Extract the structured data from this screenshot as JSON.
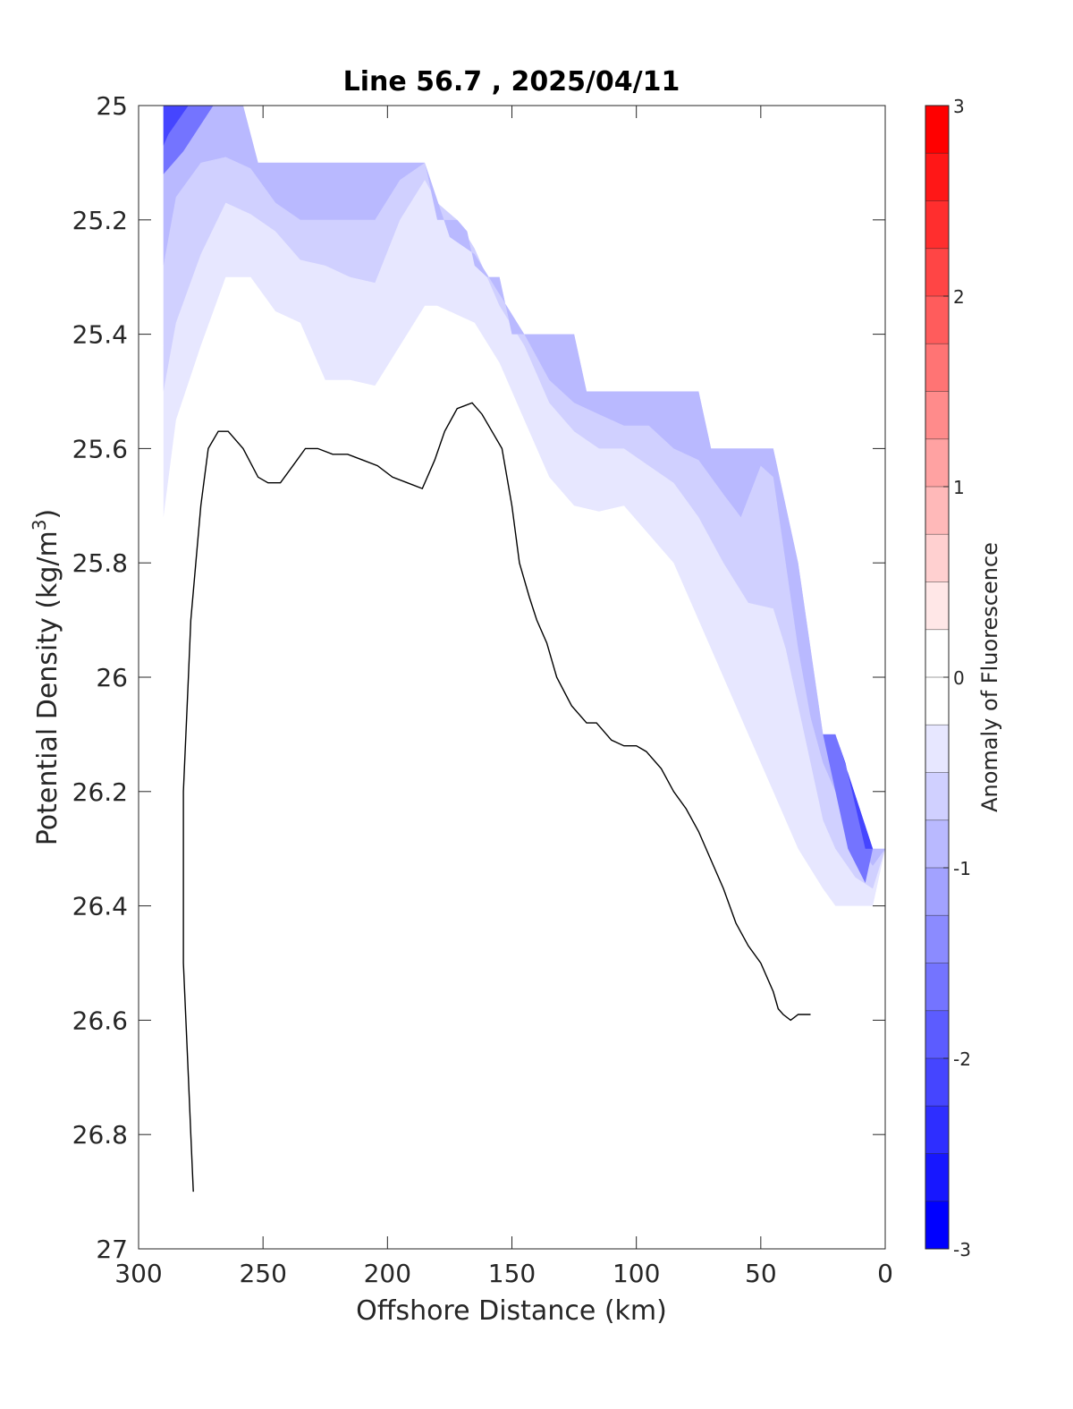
{
  "chart_data": {
    "type": "contour",
    "title": "Line 56.7 , 2025/04/11",
    "xlabel": "Offshore Distance (km)",
    "ylabel": "Potential Density (kg/m",
    "ylabel_sup": "3",
    "ylabel_end": ")",
    "xlim": [
      300,
      0
    ],
    "ylim": [
      25,
      27
    ],
    "x_reversed": true,
    "y_reversed": true,
    "xticks": [
      300,
      250,
      200,
      150,
      100,
      50,
      0
    ],
    "yticks": [
      25,
      25.2,
      25.4,
      25.6,
      25.8,
      26,
      26.2,
      26.4,
      26.6,
      26.8,
      27
    ],
    "ytick_labels": [
      "25",
      "25.2",
      "25.4",
      "25.6",
      "25.8",
      "26",
      "26.2",
      "26.4",
      "26.6",
      "26.8",
      "27"
    ],
    "grid": false,
    "colorbar": {
      "label": "Anomaly of Fluorescence",
      "range": [
        -3,
        3
      ],
      "ticks": [
        -3,
        -2,
        -1,
        0,
        1,
        2,
        3
      ],
      "ticklabels": [
        "-3",
        "-2",
        "-1",
        "0",
        "1",
        "2",
        "3"
      ],
      "levels": [
        -3,
        -2.75,
        -2.5,
        -2.25,
        -2,
        -1.75,
        -1.5,
        -1.25,
        -1,
        -0.75,
        -0.5,
        -0.25,
        0,
        0.25,
        0.5,
        0.75,
        1,
        1.25,
        1.5,
        1.75,
        2,
        2.25,
        2.5,
        2.75,
        3
      ],
      "colors": [
        "#0000ff",
        "#1717ff",
        "#2e2eff",
        "#4545ff",
        "#5c5cff",
        "#7474ff",
        "#8b8bff",
        "#a2a2ff",
        "#b9b9ff",
        "#d0d0ff",
        "#e7e7ff",
        "#ffffff",
        "#ffffff",
        "#ffe7e7",
        "#ffd0d0",
        "#ffb9b9",
        "#ffa2a2",
        "#ff8b8b",
        "#ff7474",
        "#ff5c5c",
        "#ff4545",
        "#ff2e2e",
        "#ff1717",
        "#ff0000"
      ]
    },
    "contour_bands": [
      {
        "name": "upper boundary of sampled section",
        "anomaly": 0,
        "x": [
          290,
          285,
          270,
          262,
          258,
          252,
          185,
          180,
          172,
          168,
          165,
          160,
          155,
          150,
          145,
          125,
          120,
          75,
          70,
          45,
          40,
          35,
          30,
          25,
          20,
          15,
          10,
          5,
          0
        ],
        "y": [
          25,
          25,
          25,
          25,
          25,
          25.1,
          25.1,
          25.2,
          25.2,
          25.22,
          25.28,
          25.3,
          25.3,
          25.4,
          25.4,
          25.4,
          25.5,
          25.5,
          25.6,
          25.6,
          25.7,
          25.8,
          25.95,
          26.1,
          26.1,
          26.2,
          26.3,
          26.3,
          26.3
        ]
      },
      {
        "name": "-0.25 contour",
        "anomaly": -0.25,
        "x": [
          290,
          285,
          275,
          265,
          255,
          245,
          235,
          225,
          215,
          205,
          195,
          185,
          180,
          175,
          165,
          155,
          145,
          135,
          125,
          115,
          105,
          95,
          85,
          75,
          65,
          55,
          45,
          35,
          25,
          20,
          10,
          5
        ],
        "y": [
          25.72,
          25.55,
          25.42,
          25.3,
          25.3,
          25.36,
          25.38,
          25.48,
          25.48,
          25.49,
          25.42,
          25.35,
          25.35,
          25.36,
          25.38,
          25.45,
          25.55,
          25.65,
          25.7,
          25.71,
          25.7,
          25.75,
          25.8,
          25.9,
          26.0,
          26.1,
          26.2,
          26.3,
          26.37,
          26.4,
          26.4,
          26.4
        ]
      },
      {
        "name": "-0.5 contour",
        "anomaly": -0.5,
        "x": [
          290,
          285,
          275,
          265,
          255,
          245,
          235,
          225,
          215,
          205,
          195,
          185,
          180,
          172,
          165,
          155,
          145,
          135,
          125,
          115,
          105,
          95,
          85,
          75,
          65,
          55,
          45,
          40,
          35,
          30,
          25,
          20,
          12,
          5
        ],
        "y": [
          25.5,
          25.38,
          25.26,
          25.17,
          25.19,
          25.22,
          25.27,
          25.28,
          25.3,
          25.31,
          25.2,
          25.13,
          25.17,
          25.2,
          25.25,
          25.35,
          25.42,
          25.52,
          25.57,
          25.6,
          25.6,
          25.63,
          25.66,
          25.72,
          25.8,
          25.87,
          25.88,
          25.95,
          26.05,
          26.15,
          26.25,
          26.3,
          26.35,
          26.37
        ]
      },
      {
        "name": "-0.75 contour",
        "anomaly": -0.75,
        "x": [
          290,
          285,
          275,
          265,
          255,
          245,
          235,
          225,
          215,
          205,
          195,
          185,
          175,
          165,
          155,
          145,
          135,
          125,
          115,
          105,
          95,
          85,
          75,
          65,
          58,
          50,
          45,
          40,
          35,
          30,
          25,
          20,
          15,
          10,
          5
        ],
        "y": [
          25.28,
          25.16,
          25.1,
          25.09,
          25.11,
          25.17,
          25.2,
          25.2,
          25.2,
          25.2,
          25.13,
          25.1,
          25.23,
          25.26,
          25.33,
          25.4,
          25.48,
          25.52,
          25.54,
          25.56,
          25.56,
          25.6,
          25.62,
          25.68,
          25.72,
          25.63,
          25.65,
          25.8,
          25.95,
          26.07,
          26.15,
          26.2,
          26.25,
          26.3,
          26.33
        ]
      }
    ],
    "series": [
      {
        "type": "line",
        "color": "#000000",
        "x": [
          278,
          279,
          280,
          281,
          282,
          282,
          282,
          281,
          280,
          279,
          277,
          275,
          272,
          268,
          264,
          258,
          252,
          248,
          243,
          238,
          233,
          228,
          222,
          216,
          210,
          204,
          198,
          192,
          186,
          181,
          177,
          172,
          166,
          162,
          158,
          154,
          150,
          147,
          143,
          140,
          136,
          132,
          126,
          120,
          116,
          110,
          105,
          100,
          96,
          90,
          85,
          80,
          75,
          70,
          65,
          60,
          55,
          50,
          45,
          43,
          41,
          38,
          35,
          30
        ],
        "y": [
          26.9,
          26.8,
          26.7,
          26.6,
          26.5,
          26.4,
          26.2,
          26.1,
          26.0,
          25.9,
          25.8,
          25.7,
          25.6,
          25.57,
          25.57,
          25.6,
          25.65,
          25.66,
          25.66,
          25.63,
          25.6,
          25.6,
          25.61,
          25.61,
          25.62,
          25.63,
          25.65,
          25.66,
          25.67,
          25.62,
          25.57,
          25.53,
          25.52,
          25.54,
          25.57,
          25.6,
          25.7,
          25.8,
          25.86,
          25.9,
          25.94,
          26.0,
          26.05,
          26.08,
          26.08,
          26.11,
          26.12,
          26.12,
          26.13,
          26.16,
          26.2,
          26.23,
          26.27,
          26.32,
          26.37,
          26.43,
          26.47,
          26.5,
          26.55,
          26.58,
          26.59,
          26.6,
          26.59,
          26.59
        ]
      }
    ]
  }
}
